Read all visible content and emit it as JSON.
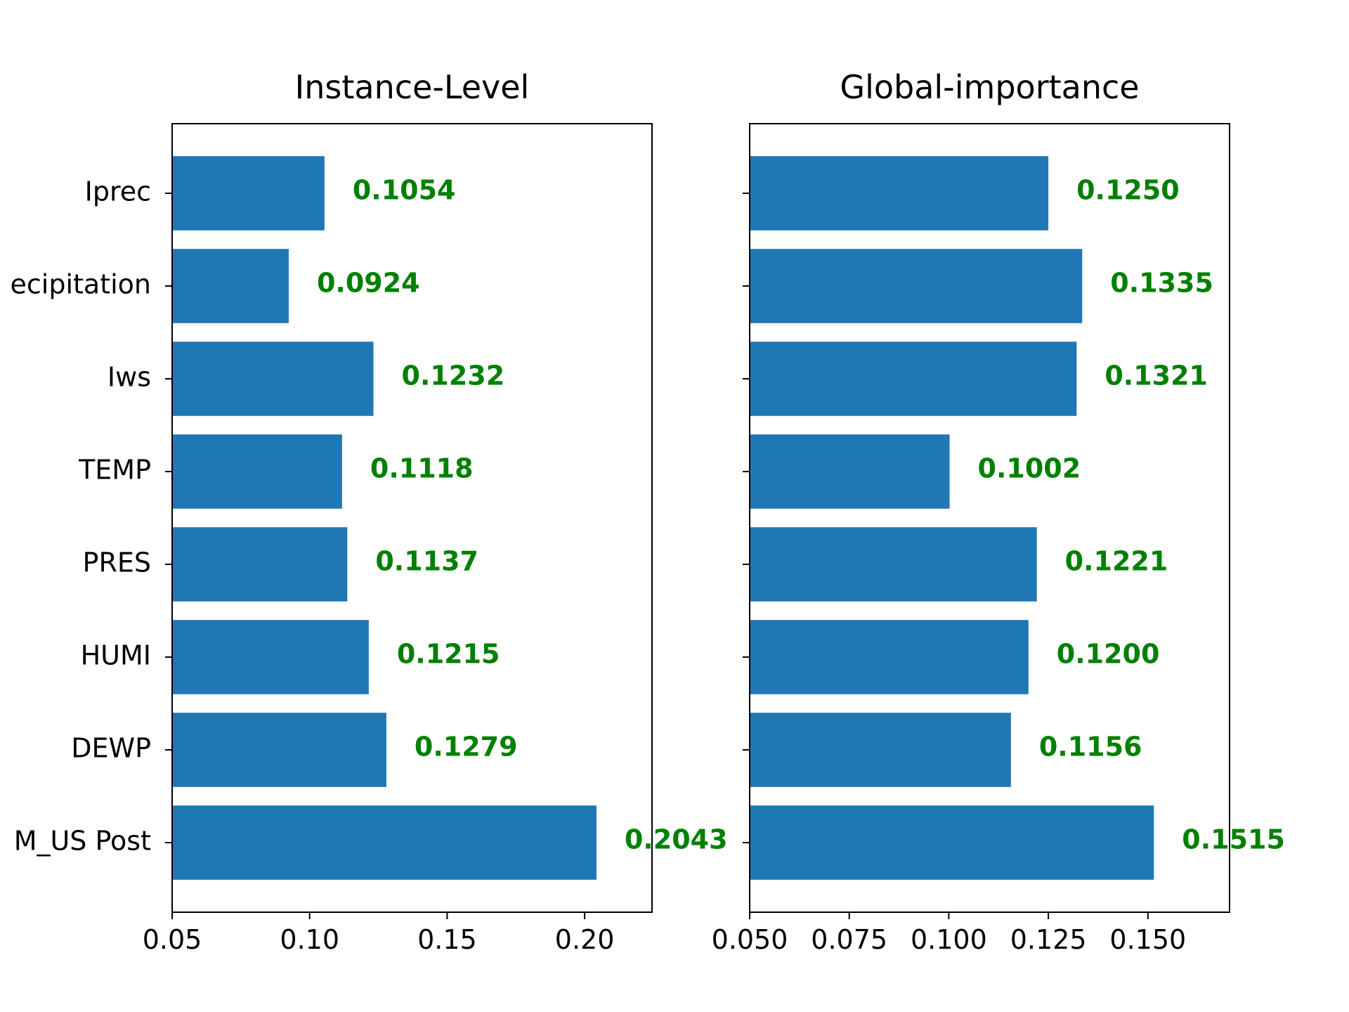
{
  "chart_data": [
    {
      "type": "bar",
      "orientation": "horizontal",
      "title": "Instance-Level",
      "categories": [
        "Iprec",
        "Precipitation",
        "Iws",
        "TEMP",
        "PRES",
        "HUMI",
        "DEWP",
        "PM_US Post"
      ],
      "category_labels_shown": [
        "Iprec",
        "ecipitation",
        "Iws",
        "TEMP",
        "PRES",
        "HUMI",
        "DEWP",
        "M_US Post"
      ],
      "values": [
        0.1054,
        0.0924,
        0.1232,
        0.1118,
        0.1137,
        0.1215,
        0.1279,
        0.2043
      ],
      "value_labels": [
        "0.1054",
        "0.0924",
        "0.1232",
        "0.1118",
        "0.1137",
        "0.1215",
        "0.1279",
        "0.2043"
      ],
      "xlim": [
        0.05,
        0.2245
      ],
      "xticks": [
        0.05,
        0.1,
        0.15,
        0.2
      ],
      "xtick_labels": [
        "0.05",
        "0.10",
        "0.15",
        "0.20"
      ],
      "xlabel": "",
      "ylabel": "",
      "grid": false
    },
    {
      "type": "bar",
      "orientation": "horizontal",
      "title": "Global-importance",
      "categories": [
        "Iprec",
        "Precipitation",
        "Iws",
        "TEMP",
        "PRES",
        "HUMI",
        "DEWP",
        "PM_US Post"
      ],
      "values": [
        0.125,
        0.1335,
        0.1321,
        0.1002,
        0.1221,
        0.12,
        0.1156,
        0.1515
      ],
      "value_labels": [
        "0.1250",
        "0.1335",
        "0.1321",
        "0.1002",
        "0.1221",
        "0.1200",
        "0.1156",
        "0.1515"
      ],
      "xlim": [
        0.05,
        0.1705
      ],
      "xticks": [
        0.05,
        0.075,
        0.1,
        0.125,
        0.15
      ],
      "xtick_labels": [
        "0.050",
        "0.075",
        "0.100",
        "0.125",
        "0.150"
      ],
      "xlabel": "",
      "ylabel": "",
      "grid": false
    }
  ],
  "colors": {
    "bar": "#1f77b4",
    "value_label": "#008000",
    "axis": "#000000"
  }
}
